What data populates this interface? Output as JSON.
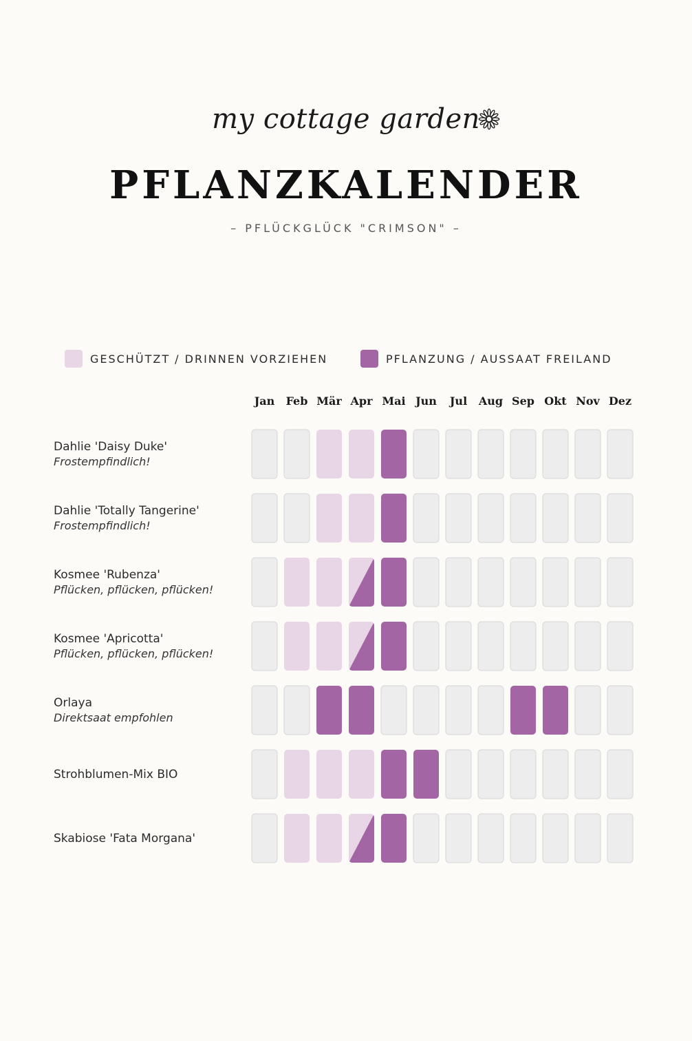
{
  "header": {
    "logo_text": "my cottage garden",
    "logo_icon": "flower-icon",
    "title": "PFLANZKALENDER",
    "subtitle": "– PFLÜCKGLÜCK \"CRIMSON\" –"
  },
  "legend": {
    "protected": {
      "label": "GESCHÜTZT / DRINNEN VORZIEHEN",
      "color": "#e8d5e6"
    },
    "planting": {
      "label": "PFLANZUNG / AUSSAAT FREILAND",
      "color": "#a365a4"
    }
  },
  "colors": {
    "empty": "#ededed",
    "empty_border": "#dcdcdc",
    "protected": "#e8d5e6",
    "planting": "#a365a4"
  },
  "chart_data": {
    "type": "table",
    "months": [
      "Jan",
      "Feb",
      "Mär",
      "Apr",
      "Mai",
      "Jun",
      "Jul",
      "Aug",
      "Sep",
      "Okt",
      "Nov",
      "Dez"
    ],
    "value_legend": {
      "0": "none",
      "1": "protected",
      "2": "planting",
      "3": "protected+planting"
    },
    "plants": [
      {
        "name": "Dahlie 'Daisy Duke'",
        "note": "Frostempfindlich!",
        "months": [
          0,
          0,
          1,
          1,
          2,
          0,
          0,
          0,
          0,
          0,
          0,
          0
        ]
      },
      {
        "name": "Dahlie 'Totally Tangerine'",
        "note": "Frostempfindlich!",
        "months": [
          0,
          0,
          1,
          1,
          2,
          0,
          0,
          0,
          0,
          0,
          0,
          0
        ]
      },
      {
        "name": "Kosmee 'Rubenza'",
        "note": "Pflücken, pflücken, pflücken!",
        "months": [
          0,
          1,
          1,
          3,
          2,
          0,
          0,
          0,
          0,
          0,
          0,
          0
        ]
      },
      {
        "name": "Kosmee 'Apricotta'",
        "note": "Pflücken, pflücken, pflücken!",
        "months": [
          0,
          1,
          1,
          3,
          2,
          0,
          0,
          0,
          0,
          0,
          0,
          0
        ]
      },
      {
        "name": "Orlaya",
        "note": "Direktsaat empfohlen",
        "months": [
          0,
          0,
          2,
          2,
          0,
          0,
          0,
          0,
          2,
          2,
          0,
          0
        ]
      },
      {
        "name": "Strohblumen-Mix BIO",
        "note": "",
        "months": [
          0,
          1,
          1,
          1,
          2,
          2,
          0,
          0,
          0,
          0,
          0,
          0
        ]
      },
      {
        "name": "Skabiose 'Fata Morgana'",
        "note": "",
        "months": [
          0,
          1,
          1,
          3,
          2,
          0,
          0,
          0,
          0,
          0,
          0,
          0
        ]
      }
    ]
  }
}
